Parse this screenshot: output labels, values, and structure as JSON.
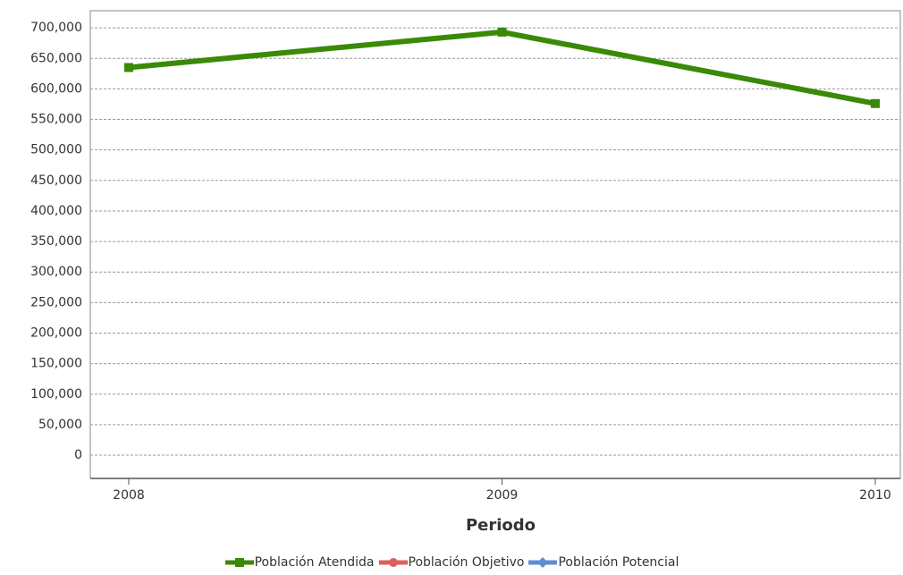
{
  "chart_data": {
    "type": "line",
    "x_label": "Periodo",
    "categories": [
      "2008",
      "2009",
      "2010"
    ],
    "series": [
      {
        "name": "Población Atendida",
        "color": "#3a8a08",
        "marker": "square",
        "values": [
          635000,
          693000,
          576000
        ]
      },
      {
        "name": "Población Objetivo",
        "color": "#d9625f",
        "marker": "circle",
        "values": [
          null,
          null,
          null
        ]
      },
      {
        "name": "Población Potencial",
        "color": "#5b8fd0",
        "marker": "diamond",
        "values": [
          null,
          null,
          null
        ]
      }
    ],
    "ylim": [
      -38000,
      728000
    ],
    "yticks": [
      0,
      {
        "value": 50000,
        "label": "50,000"
      },
      {
        "value": 100000,
        "label": "100,000"
      },
      {
        "value": 150000,
        "label": "150,000"
      },
      {
        "value": 200000,
        "label": "200,000"
      },
      {
        "value": 250000,
        "label": "250,000"
      },
      {
        "value": 300000,
        "label": "300,000"
      },
      {
        "value": 350000,
        "label": "350,000"
      },
      {
        "value": 400000,
        "label": "400,000"
      },
      {
        "value": 450000,
        "label": "450,000"
      },
      {
        "value": 500000,
        "label": "500,000"
      },
      {
        "value": 550000,
        "label": "550,000"
      },
      {
        "value": 600000,
        "label": "600,000"
      },
      {
        "value": 650000,
        "label": "650,000"
      },
      {
        "value": 700000,
        "label": "700,000"
      }
    ],
    "grid": true,
    "legend": "bottom"
  }
}
